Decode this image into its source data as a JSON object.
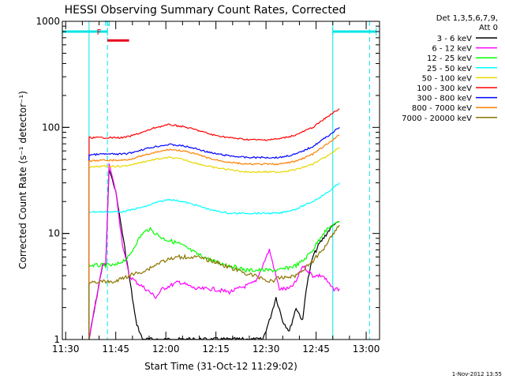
{
  "chart_data": {
    "type": "line",
    "title": "HESSI Observing Summary Count Rates, Corrected",
    "ylabel": "Corrected Count Rate (s⁻¹ detector⁻¹)",
    "xlabel": "Start Time (31-Oct-12 11:29:02)",
    "x_unit": "minutes after 11:29:02",
    "xlim": [
      0,
      95
    ],
    "ylim": [
      1,
      1000
    ],
    "yscale": "log",
    "grid": false,
    "legend_placement": "top-right outside",
    "legend_header": [
      "Det 1,3,5,6,7,9,",
      "Att 0"
    ],
    "footer_timestamp": "1-Nov-2012 13:55",
    "x_ticks": [
      {
        "label": "11:30",
        "x": 1.0
      },
      {
        "label": "11:45",
        "x": 16.0
      },
      {
        "label": "12:00",
        "x": 31.0
      },
      {
        "label": "12:15",
        "x": 46.0
      },
      {
        "label": "12:30",
        "x": 61.0
      },
      {
        "label": "12:45",
        "x": 76.0
      },
      {
        "label": "13:00",
        "x": 91.0
      }
    ],
    "y_ticks": [
      {
        "label": "1",
        "y": 1
      },
      {
        "label": "10",
        "y": 10
      },
      {
        "label": "100",
        "y": 100
      },
      {
        "label": "1000",
        "y": 1000
      }
    ],
    "annotations": [
      {
        "label": "F",
        "x": 11,
        "y": 750,
        "color": "#e8001e"
      },
      {
        "label": "N",
        "x": 13.5,
        "y": 900,
        "color": "#00e5e5"
      }
    ],
    "markers": {
      "night_bars": [
        [
          0,
          13.5
        ],
        [
          81,
          94
        ]
      ],
      "night_bar_y": 800,
      "flare_bar": [
        13.5,
        20
      ],
      "flare_bar_y": 660,
      "solid_lines_x": [
        8,
        81
      ],
      "dashed_lines_x": [
        13.5,
        92
      ]
    },
    "series": [
      {
        "name": "3 - 6 keV",
        "color": "#000000",
        "x": [
          8,
          12,
          13,
          14,
          16,
          18,
          20,
          22,
          24,
          60,
          62,
          64,
          66,
          68,
          70,
          72,
          73,
          75,
          77,
          81,
          83
        ],
        "y": [
          1,
          5,
          5,
          40,
          25,
          10,
          4,
          1.5,
          1,
          1,
          1.5,
          2.5,
          1.5,
          1.2,
          2,
          1.5,
          3,
          6,
          8,
          12,
          13
        ]
      },
      {
        "name": "6 - 12 keV",
        "color": "#ff00ff",
        "x": [
          8,
          12,
          13,
          14,
          16,
          18,
          20,
          22,
          25,
          28,
          30,
          35,
          40,
          45,
          50,
          55,
          58,
          60,
          62,
          65,
          68,
          70,
          72,
          75,
          78,
          81,
          83
        ],
        "y": [
          1,
          5,
          5,
          45,
          25,
          8,
          4,
          3.5,
          3,
          2.5,
          3,
          3.5,
          3,
          3,
          2.8,
          3.2,
          3.5,
          5,
          7,
          3,
          3,
          3.5,
          5,
          4,
          4,
          3,
          3
        ]
      },
      {
        "name": "12 - 25 keV",
        "color": "#00ff00",
        "x": [
          8,
          12,
          14,
          16,
          18,
          20,
          22,
          24,
          26,
          28,
          30,
          35,
          40,
          45,
          50,
          55,
          60,
          65,
          70,
          72,
          75,
          78,
          81,
          83
        ],
        "y": [
          5,
          5,
          5,
          5,
          5.5,
          6,
          8,
          10,
          11,
          10,
          9,
          8,
          6.5,
          5.5,
          5,
          4.5,
          4.5,
          4.5,
          5,
          5.5,
          7,
          10,
          12,
          13
        ]
      },
      {
        "name": "25 - 50 keV",
        "color": "#00ffff",
        "x": [
          8,
          12,
          14,
          16,
          18,
          20,
          25,
          28,
          32,
          36,
          40,
          45,
          50,
          55,
          60,
          65,
          70,
          75,
          80,
          83
        ],
        "y": [
          16,
          16,
          16,
          16,
          16,
          16.5,
          18,
          19.5,
          21,
          20,
          18.5,
          16.5,
          15.5,
          15.5,
          15.5,
          15.5,
          17,
          20,
          25,
          30
        ]
      },
      {
        "name": "50 - 100 keV",
        "color": "#e8d800",
        "x": [
          8,
          12,
          14,
          16,
          18,
          20,
          25,
          28,
          32,
          36,
          40,
          45,
          50,
          55,
          60,
          65,
          70,
          75,
          80,
          83
        ],
        "y": [
          42,
          43,
          43,
          43,
          43,
          44,
          48,
          50,
          52,
          50,
          46,
          42,
          40,
          38,
          38,
          38,
          40,
          45,
          55,
          65
        ]
      },
      {
        "name": "100 - 300 keV",
        "color": "#ff0000",
        "x": [
          8,
          12,
          14,
          16,
          18,
          20,
          25,
          28,
          32,
          36,
          40,
          45,
          50,
          55,
          60,
          65,
          70,
          75,
          80,
          83
        ],
        "y": [
          80,
          80,
          80,
          80,
          80,
          82,
          92,
          100,
          106,
          102,
          95,
          85,
          80,
          77,
          76,
          78,
          85,
          100,
          130,
          150
        ]
      },
      {
        "name": "300 - 800 keV",
        "color": "#0000ff",
        "x": [
          8,
          12,
          14,
          16,
          18,
          20,
          25,
          28,
          32,
          36,
          40,
          45,
          50,
          55,
          60,
          65,
          70,
          75,
          80,
          83
        ],
        "y": [
          55,
          56,
          56,
          56,
          56,
          57,
          63,
          66,
          69,
          67,
          63,
          57,
          54,
          52,
          52,
          52,
          56,
          66,
          85,
          100
        ]
      },
      {
        "name": "800 - 7000 keV",
        "color": "#ff7f00",
        "x": [
          8,
          12,
          14,
          16,
          18,
          20,
          25,
          28,
          32,
          36,
          40,
          45,
          50,
          55,
          60,
          65,
          70,
          75,
          80,
          83
        ],
        "y": [
          48,
          49,
          49,
          49,
          49,
          50,
          55,
          58,
          62,
          60,
          56,
          50,
          47,
          45,
          45,
          45,
          48,
          56,
          72,
          85
        ]
      },
      {
        "name": "7000 - 20000 keV",
        "color": "#8b7500",
        "x": [
          8,
          12,
          14,
          16,
          18,
          20,
          25,
          30,
          35,
          40,
          45,
          50,
          55,
          60,
          62,
          65,
          70,
          75,
          78,
          81,
          83
        ],
        "y": [
          3.5,
          3.5,
          3.5,
          3.5,
          3.8,
          4,
          4.5,
          5.5,
          6,
          6,
          5.5,
          4.8,
          4.2,
          3.8,
          3.5,
          3.8,
          4,
          5.5,
          7,
          10,
          12
        ]
      }
    ]
  }
}
